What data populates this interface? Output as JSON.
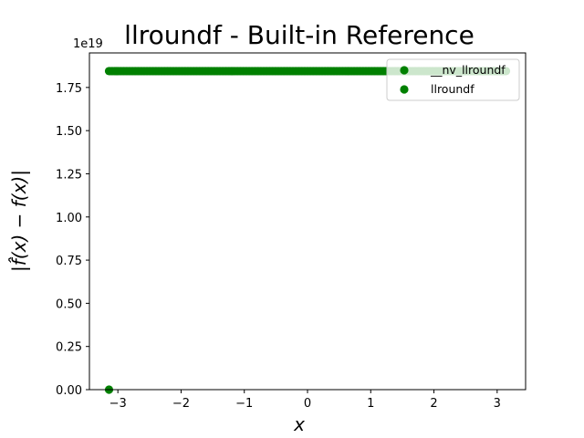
{
  "chart_data": {
    "type": "scatter",
    "title": "llroundf - Built-in Reference",
    "xlabel": "x",
    "ylabel": "|f̂(x) − f(x)|",
    "y_offset_label": "1e19",
    "xlim": [
      -3.45,
      3.45
    ],
    "ylim": [
      0,
      1.95
    ],
    "x_ticks": [
      -3,
      -2,
      -1,
      0,
      1,
      2,
      3
    ],
    "x_tick_labels": [
      "−3",
      "−2",
      "−1",
      "0",
      "1",
      "2",
      "3"
    ],
    "y_ticks": [
      0.0,
      0.25,
      0.5,
      0.75,
      1.0,
      1.25,
      1.5,
      1.75
    ],
    "y_tick_labels": [
      "0.00",
      "0.25",
      "0.50",
      "0.75",
      "1.00",
      "1.25",
      "1.50",
      "1.75"
    ],
    "legend_position": "top-right",
    "series": [
      {
        "name": "__nv_llroundf",
        "color": "#008000",
        "x_range": [
          -3.14,
          3.14
        ],
        "y_value": 1.8446744,
        "point_count": 300
      },
      {
        "name": "llroundf",
        "color": "#008000",
        "points": [
          [
            -3.14,
            0.0
          ]
        ]
      }
    ]
  }
}
